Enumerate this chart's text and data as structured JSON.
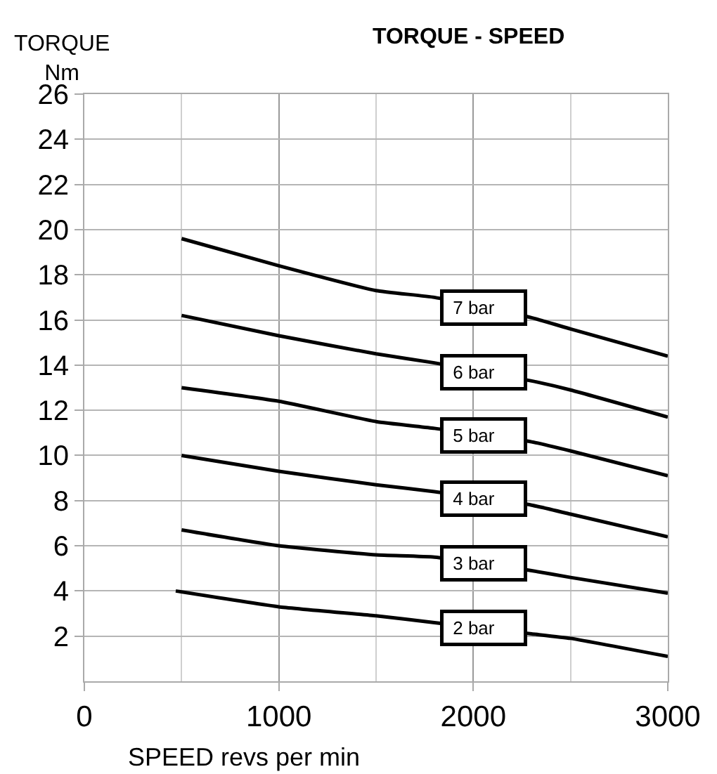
{
  "chart_data": {
    "type": "line",
    "title": "TORQUE - SPEED",
    "xlabel": "SPEED revs per min",
    "ylabel": "TORQUE\nNm",
    "x": [
      500,
      1000,
      1500,
      1800,
      2300,
      2500,
      3000
    ],
    "series": [
      {
        "name": "7 bar",
        "color": "#000000",
        "values": [
          19.6,
          18.4,
          17.3,
          17.0,
          16.1,
          15.6,
          14.4
        ]
      },
      {
        "name": "6 bar",
        "color": "#000000",
        "values": [
          16.2,
          15.3,
          14.5,
          14.1,
          13.3,
          12.9,
          11.7
        ]
      },
      {
        "name": "5 bar",
        "color": "#000000",
        "values": [
          13.0,
          12.4,
          11.5,
          11.2,
          10.6,
          10.2,
          9.1
        ]
      },
      {
        "name": "4 bar",
        "color": "#000000",
        "values": [
          10.0,
          9.3,
          8.7,
          8.4,
          7.8,
          7.4,
          6.4
        ]
      },
      {
        "name": "3 bar",
        "color": "#000000",
        "values": [
          6.7,
          6.0,
          5.6,
          5.5,
          4.9,
          4.6,
          3.9
        ]
      },
      {
        "name": "2 bar",
        "color": "#000000",
        "x": [
          470,
          1000,
          1500,
          1800,
          2300,
          2500,
          3000
        ],
        "values": [
          4.0,
          3.3,
          2.9,
          2.6,
          2.1,
          1.9,
          1.1
        ]
      }
    ],
    "xlim": [
      0,
      3000
    ],
    "xticks": [
      0,
      1000,
      2000,
      3000
    ],
    "ylim": [
      0,
      26
    ],
    "yticks": [
      2,
      4,
      6,
      8,
      10,
      12,
      14,
      16,
      18,
      20,
      22,
      24,
      26
    ],
    "grid": true,
    "legend": false,
    "marker": "none",
    "line_style": "solid"
  }
}
